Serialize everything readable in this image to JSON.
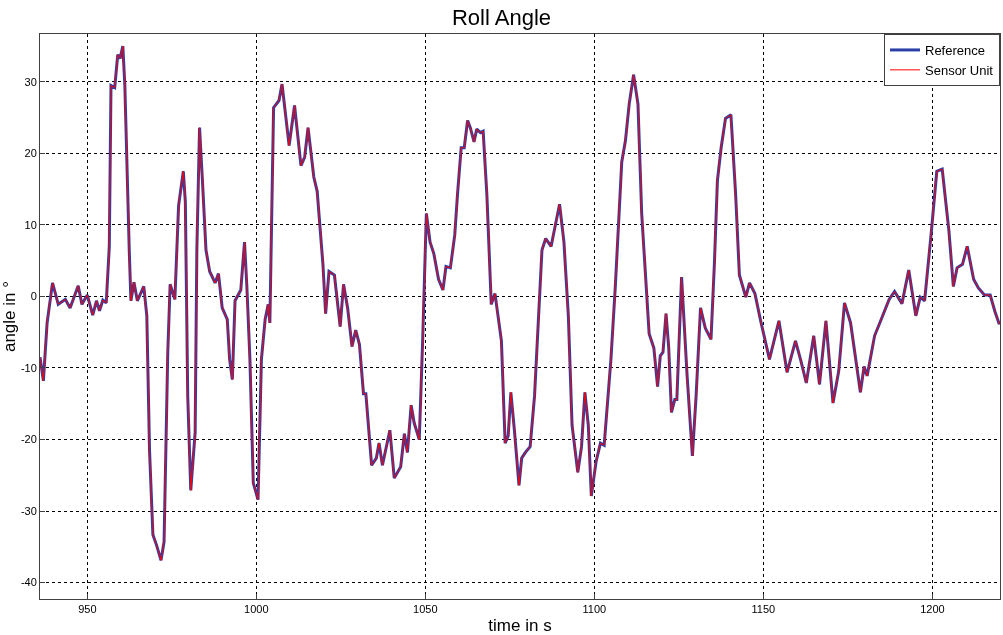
{
  "chart_data": {
    "type": "line",
    "title": "Roll Angle",
    "xlabel": "time in s",
    "ylabel": "angle in °",
    "x": [
      936.0,
      937.0,
      938.1,
      939.7,
      941.4,
      943.5,
      944.9,
      947.3,
      948.4,
      950.0,
      951.6,
      952.7,
      953.6,
      954.6,
      955.6,
      956.5,
      957.0,
      958.1,
      959.0,
      959.7,
      960.5,
      961.1,
      962.4,
      962.9,
      963.8,
      964.8,
      966.7,
      967.6,
      968.4,
      969.4,
      970.5,
      971.8,
      972.7,
      973.8,
      974.5,
      975.9,
      977.0,
      978.4,
      979.0,
      979.7,
      980.6,
      981.9,
      982.4,
      983.2,
      984.0,
      985.1,
      986.2,
      987.8,
      988.8,
      989.9,
      991.4,
      992.1,
      992.9,
      993.7,
      995.4,
      996.5,
      997.2,
      998.1,
      999.1,
      1000.5,
      1001.5,
      1002.6,
      1003.5,
      1004.0,
      1005.1,
      1006.7,
      1007.6,
      1009.7,
      1011.3,
      1013.2,
      1014.3,
      1015.3,
      1017.0,
      1018.0,
      1019.7,
      1020.5,
      1021.5,
      1023.1,
      1024.8,
      1025.8,
      1027.0,
      1028.3,
      1029.4,
      1030.5,
      1031.7,
      1032.4,
      1034.1,
      1035.5,
      1036.3,
      1037.3,
      1039.5,
      1040.8,
      1042.7,
      1043.8,
      1044.7,
      1045.8,
      1046.7,
      1048.2,
      1049.2,
      1050.3,
      1051.4,
      1052.5,
      1053.9,
      1055.2,
      1056.1,
      1057.4,
      1058.7,
      1059.5,
      1060.6,
      1061.5,
      1062.5,
      1063.3,
      1064.4,
      1065.2,
      1066.3,
      1067.1,
      1068.2,
      1069.5,
      1070.6,
      1072.5,
      1073.6,
      1074.5,
      1075.3,
      1076.4,
      1077.7,
      1078.5,
      1079.6,
      1081.0,
      1082.3,
      1083.4,
      1084.5,
      1085.6,
      1087.2,
      1088.3,
      1089.7,
      1091.0,
      1092.3,
      1093.4,
      1095.1,
      1096.2,
      1097.2,
      1098.2,
      1099.1,
      1100.5,
      1101.8,
      1102.9,
      1104.9,
      1106.2,
      1108.1,
      1109.2,
      1110.3,
      1111.6,
      1112.9,
      1114.0,
      1116.2,
      1117.6,
      1118.7,
      1119.5,
      1120.3,
      1121.2,
      1122.0,
      1122.8,
      1123.8,
      1124.4,
      1125.8,
      1127.4,
      1129.0,
      1130.1,
      1131.4,
      1132.8,
      1134.5,
      1135.5,
      1136.4,
      1137.5,
      1138.8,
      1140.4,
      1141.8,
      1142.9,
      1144.8,
      1145.9,
      1147.5,
      1149.1,
      1151.8,
      1154.6,
      1157.0,
      1159.5,
      1161.1,
      1162.7,
      1164.9,
      1166.6,
      1168.5,
      1170.6,
      1172.3,
      1174.0,
      1175.8,
      1178.7,
      1179.8,
      1180.7,
      1182.9,
      1184.7,
      1187.2,
      1188.8,
      1191.0,
      1193.0,
      1195.1,
      1196.4,
      1197.7,
      1199.7,
      1201.3,
      1202.9,
      1204.9,
      1206.2,
      1207.3,
      1208.9,
      1210.3,
      1212.2,
      1213.6,
      1215.4,
      1217.1,
      1218.5,
      1219.8
    ],
    "series": [
      {
        "name": "Reference",
        "color": "#2b3fa8",
        "values": [
          -8.5,
          -11.8,
          -3.7,
          1.9,
          -1.1,
          -0.4,
          -1.6,
          1.5,
          -1.1,
          0.2,
          -2.6,
          -0.6,
          -2.0,
          -0.5,
          -0.9,
          7.0,
          29.5,
          29.2,
          33.8,
          33.3,
          35.0,
          29.5,
          6.5,
          -0.6,
          2.0,
          -0.6,
          1.4,
          -2.7,
          -21.5,
          -33.3,
          -34.8,
          -36.9,
          -34.3,
          -7.8,
          1.7,
          -0.4,
          12.7,
          17.5,
          13.2,
          -13.9,
          -27.1,
          -19.0,
          6.5,
          23.6,
          16.7,
          6.5,
          3.5,
          1.9,
          3.2,
          -1.6,
          -3.2,
          -8.8,
          -11.6,
          -0.6,
          0.9,
          7.6,
          1.4,
          -8.8,
          -26.1,
          -28.4,
          -8.8,
          -3.2,
          -1.1,
          -3.7,
          26.4,
          27.4,
          29.7,
          21.1,
          26.7,
          18.3,
          19.5,
          23.6,
          16.7,
          14.7,
          4.5,
          -2.4,
          3.5,
          3.0,
          -4.2,
          1.7,
          -1.6,
          -7.0,
          -4.7,
          -6.7,
          -13.6,
          -13.6,
          -23.6,
          -22.6,
          -20.5,
          -23.6,
          -18.7,
          -25.4,
          -23.8,
          -19.2,
          -21.8,
          -15.2,
          -17.7,
          -20.0,
          -6.2,
          11.6,
          7.6,
          6.0,
          2.4,
          0.9,
          4.2,
          4.0,
          8.6,
          14.2,
          20.8,
          20.8,
          24.6,
          23.6,
          21.6,
          23.4,
          22.9,
          23.1,
          14.2,
          -1.1,
          0.4,
          -6.2,
          -20.5,
          -19.5,
          -13.4,
          -19.0,
          -26.4,
          -22.6,
          -21.8,
          -21.0,
          -13.9,
          -3.7,
          6.5,
          8.1,
          7.0,
          9.6,
          12.9,
          7.6,
          -2.7,
          -18.0,
          -24.6,
          -21.0,
          -13.4,
          -18.0,
          -27.9,
          -23.1,
          -20.5,
          -20.8,
          -8.8,
          1.4,
          18.8,
          21.8,
          26.9,
          31.0,
          26.9,
          11.6,
          -5.2,
          -7.2,
          -12.6,
          -8.3,
          -7.8,
          -2.4,
          -7.2,
          -16.2,
          -14.4,
          -14.4,
          2.7,
          -10.8,
          -22.3,
          -13.9,
          -1.6,
          -4.4,
          -6.0,
          4.5,
          16.2,
          20.8,
          24.9,
          25.4,
          14.2,
          3.0,
          -0.1,
          1.9,
          0.4,
          -3.2,
          -8.8,
          -3.4,
          -10.6,
          -6.2,
          -9.0,
          -12.1,
          -5.5,
          -12.3,
          -3.4,
          -14.9,
          -10.4,
          -0.9,
          -3.7,
          -13.4,
          -9.8,
          -11.1,
          -5.5,
          -3.4,
          -0.4,
          0.7,
          -1.0,
          3.7,
          -2.7,
          -0.1,
          -0.6,
          9.1,
          17.5,
          17.8,
          9.1,
          1.4,
          4.0,
          4.5,
          7.0,
          2.4,
          1.2,
          0.2,
          0.2,
          -2.1,
          -3.9
        ]
      },
      {
        "name": "Sensor Unit",
        "color": "#ff0000",
        "values": [
          -8.5,
          -11.8,
          -3.7,
          1.9,
          -1.1,
          -0.4,
          -1.6,
          1.5,
          -1.1,
          0.2,
          -2.6,
          -0.6,
          -2.0,
          -0.5,
          -0.9,
          7.0,
          29.5,
          29.2,
          33.8,
          33.3,
          35.0,
          29.5,
          6.5,
          -0.6,
          2.0,
          -0.6,
          1.4,
          -2.7,
          -21.5,
          -33.3,
          -34.8,
          -36.9,
          -34.3,
          -7.8,
          1.7,
          -0.4,
          12.7,
          17.5,
          13.2,
          -13.9,
          -27.1,
          -19.0,
          6.5,
          23.6,
          16.7,
          6.5,
          3.5,
          1.9,
          3.2,
          -1.6,
          -3.2,
          -8.8,
          -11.6,
          -0.6,
          0.9,
          7.6,
          1.4,
          -8.8,
          -26.1,
          -28.4,
          -8.8,
          -3.2,
          -1.1,
          -3.7,
          26.4,
          27.4,
          29.7,
          21.1,
          26.7,
          18.3,
          19.5,
          23.6,
          16.7,
          14.7,
          4.5,
          -2.4,
          3.5,
          3.0,
          -4.2,
          1.7,
          -1.6,
          -7.0,
          -4.7,
          -6.7,
          -13.6,
          -13.6,
          -23.6,
          -22.6,
          -20.5,
          -23.6,
          -18.7,
          -25.4,
          -23.8,
          -19.2,
          -21.8,
          -15.2,
          -17.7,
          -20.0,
          -6.2,
          11.6,
          7.6,
          6.0,
          2.4,
          0.9,
          4.2,
          4.0,
          8.6,
          14.2,
          20.8,
          20.8,
          24.6,
          23.6,
          21.6,
          23.4,
          22.9,
          23.1,
          14.2,
          -1.1,
          0.4,
          -6.2,
          -20.5,
          -19.5,
          -13.4,
          -19.0,
          -26.4,
          -22.6,
          -21.8,
          -21.0,
          -13.9,
          -3.7,
          6.5,
          8.1,
          7.0,
          9.6,
          12.9,
          7.6,
          -2.7,
          -18.0,
          -24.6,
          -21.0,
          -13.4,
          -18.0,
          -27.9,
          -23.1,
          -20.5,
          -20.8,
          -8.8,
          1.4,
          18.8,
          21.8,
          26.9,
          31.0,
          26.9,
          11.6,
          -5.2,
          -7.2,
          -12.6,
          -8.3,
          -7.8,
          -2.4,
          -7.2,
          -16.2,
          -14.4,
          -14.4,
          2.7,
          -10.8,
          -22.3,
          -13.9,
          -1.6,
          -4.4,
          -6.0,
          4.5,
          16.2,
          20.8,
          24.9,
          25.4,
          14.2,
          3.0,
          -0.1,
          1.9,
          0.4,
          -3.2,
          -8.8,
          -3.4,
          -10.6,
          -6.2,
          -9.0,
          -12.1,
          -5.5,
          -12.3,
          -3.4,
          -14.9,
          -10.4,
          -0.9,
          -3.7,
          -13.4,
          -9.8,
          -11.1,
          -5.5,
          -3.4,
          -0.4,
          0.7,
          -1.0,
          3.7,
          -2.7,
          -0.1,
          -0.6,
          9.1,
          17.5,
          17.8,
          9.1,
          1.4,
          4.0,
          4.5,
          7.0,
          2.4,
          1.2,
          0.2,
          0.2,
          -2.1,
          -3.9
        ]
      }
    ],
    "xlim": [
      936,
      1220
    ],
    "xticks": [
      950,
      1000,
      1050,
      1100,
      1150,
      1200
    ],
    "ylim": [
      -42.3,
      36.7
    ],
    "yticks": [
      -40,
      -30,
      -20,
      -10,
      0,
      10,
      20,
      30
    ],
    "grid": true,
    "legend": "top right",
    "line_style": "solid",
    "marker": "none"
  }
}
